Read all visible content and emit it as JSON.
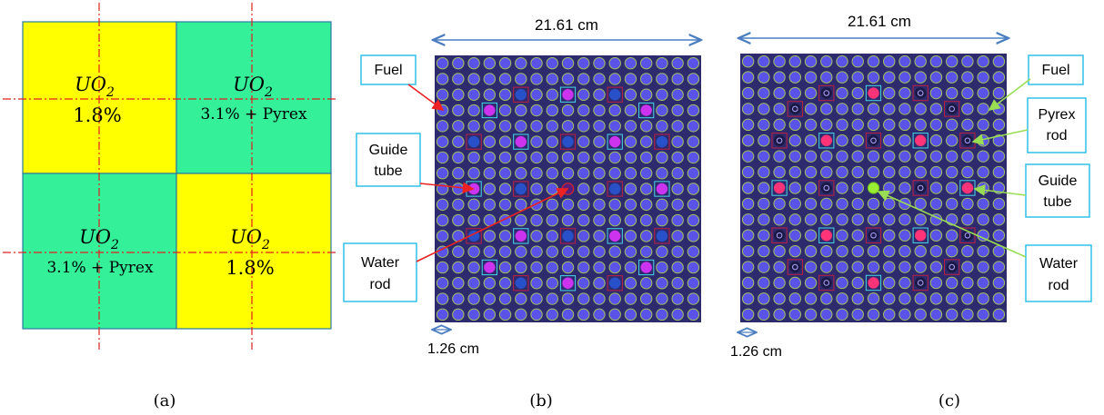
{
  "panel_a": {
    "cells": [
      {
        "material": "UO",
        "subscript": "2",
        "detail": "1.8%",
        "color": "#ffff00"
      },
      {
        "material": "UO",
        "subscript": "2",
        "detail": "3.1% + Pyrex",
        "color": "#33f099"
      },
      {
        "material": "UO",
        "subscript": "2",
        "detail": "3.1% + Pyrex",
        "color": "#33f099"
      },
      {
        "material": "UO",
        "subscript": "2",
        "detail": "1.8%",
        "color": "#ffff00"
      }
    ],
    "caption": "(a)"
  },
  "panel_b": {
    "width_label": "21.61 cm",
    "pitch_label": "1.26 cm",
    "callouts": [
      "Fuel",
      "Guide tube",
      "Water rod"
    ],
    "caption": "(b)",
    "lattice_size": 17,
    "fuel_color": "#5b52e8",
    "guide_tube_color": "#cc33ee",
    "alt_tube_color": "#2850c8",
    "water_rod_color": "#5a1f78",
    "arrow_color": "#ee2222"
  },
  "panel_c": {
    "width_label": "21.61 cm",
    "pitch_label": "1.26 cm",
    "callouts": [
      "Fuel",
      "Pyrex rod",
      "Guide tube",
      "Water rod"
    ],
    "caption": "(c)",
    "lattice_size": 17,
    "fuel_color": "#5b52e8",
    "guide_tube_color": "#ff3377",
    "pyrex_color": "#1a1a44",
    "water_rod_color": "#99ee33",
    "arrow_color": "#99dd55"
  },
  "colors": {
    "lattice_bg": "#2e2a6e",
    "fuel_ring": "#a0c060",
    "dimension_arrow": "#4a7ec0",
    "callout_border": "#30c0e8",
    "axis_dash": "#e02020"
  }
}
